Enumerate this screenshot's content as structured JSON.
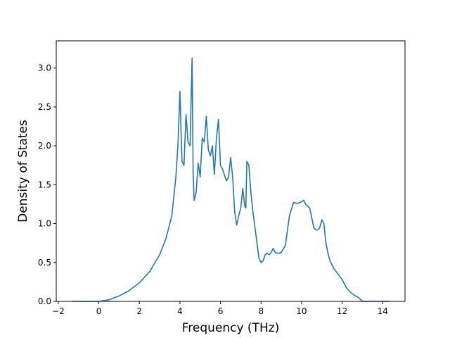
{
  "chart_data": {
    "type": "line",
    "title": "",
    "xlabel": "Frequency (THz)",
    "ylabel": "Density of States",
    "xlim": [
      -2.1,
      15.1
    ],
    "ylim": [
      0,
      3.35
    ],
    "xticks": [
      -2,
      0,
      2,
      4,
      6,
      8,
      10,
      12,
      14
    ],
    "xtick_labels": [
      "−2",
      "0",
      "2",
      "4",
      "6",
      "8",
      "10",
      "12",
      "14"
    ],
    "yticks": [
      0.0,
      0.5,
      1.0,
      1.5,
      2.0,
      2.5,
      3.0
    ],
    "ytick_labels": [
      "0.0",
      "0.5",
      "1.0",
      "1.5",
      "2.0",
      "2.5",
      "3.0"
    ],
    "grid": false,
    "legend": "none",
    "series": [
      {
        "color": "#1f77b4",
        "x": [
          -1.3,
          -0.5,
          0.0,
          0.5,
          1.0,
          1.5,
          2.0,
          2.5,
          3.0,
          3.3,
          3.6,
          3.8,
          3.9,
          4.0,
          4.1,
          4.2,
          4.3,
          4.4,
          4.5,
          4.6,
          4.65,
          4.7,
          4.8,
          4.9,
          5.0,
          5.1,
          5.2,
          5.3,
          5.4,
          5.5,
          5.6,
          5.7,
          5.8,
          5.9,
          6.0,
          6.1,
          6.2,
          6.3,
          6.4,
          6.5,
          6.6,
          6.7,
          6.8,
          6.9,
          7.0,
          7.1,
          7.2,
          7.25,
          7.3,
          7.4,
          7.5,
          7.6,
          7.7,
          7.8,
          7.9,
          8.0,
          8.1,
          8.2,
          8.3,
          8.4,
          8.5,
          8.6,
          8.7,
          8.8,
          8.9,
          9.0,
          9.2,
          9.4,
          9.6,
          9.8,
          10.0,
          10.1,
          10.2,
          10.4,
          10.6,
          10.7,
          10.8,
          10.9,
          11.0,
          11.1,
          11.2,
          11.3,
          11.4,
          11.6,
          11.8,
          12.0,
          12.2,
          12.4,
          12.6,
          12.8,
          13.0,
          13.2,
          13.5,
          14.0,
          14.3
        ],
        "y": [
          0.0,
          0.0,
          0.0,
          0.02,
          0.07,
          0.14,
          0.24,
          0.38,
          0.6,
          0.8,
          1.1,
          1.6,
          2.0,
          2.7,
          1.8,
          1.75,
          2.4,
          2.05,
          2.0,
          3.13,
          1.65,
          1.3,
          1.4,
          1.78,
          1.6,
          2.1,
          2.05,
          2.38,
          1.95,
          1.87,
          2.0,
          1.63,
          2.1,
          2.34,
          1.75,
          1.7,
          1.62,
          1.55,
          1.6,
          1.85,
          1.6,
          1.15,
          0.98,
          1.1,
          1.2,
          1.45,
          1.22,
          1.2,
          1.8,
          1.75,
          1.4,
          1.15,
          0.95,
          0.75,
          0.55,
          0.5,
          0.52,
          0.6,
          0.62,
          0.6,
          0.63,
          0.68,
          0.63,
          0.62,
          0.62,
          0.63,
          0.72,
          1.1,
          1.27,
          1.26,
          1.28,
          1.3,
          1.25,
          1.2,
          0.95,
          0.92,
          0.92,
          0.95,
          1.05,
          1.0,
          0.75,
          0.62,
          0.52,
          0.42,
          0.35,
          0.28,
          0.18,
          0.12,
          0.08,
          0.05,
          0.0,
          0.0,
          0.0,
          0.0,
          0.0
        ]
      }
    ]
  }
}
